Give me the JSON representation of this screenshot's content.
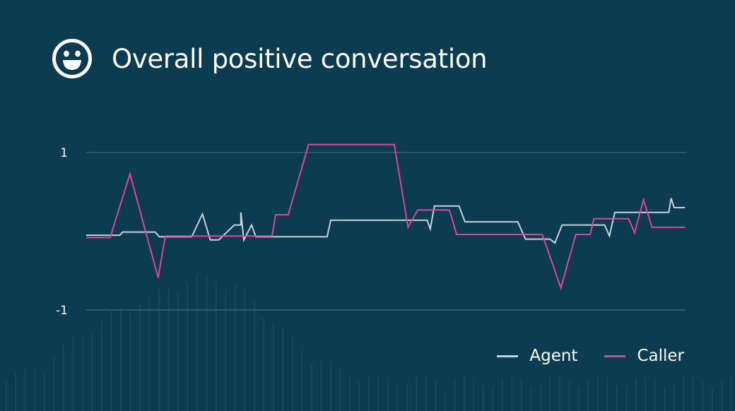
{
  "title": "Overall positive conversation",
  "header_icon": "smiley-face-icon",
  "colors": {
    "background": "#0b3c50",
    "agent": "#c5d3d8",
    "caller": "#e0449a",
    "gridline": "#4d7280"
  },
  "chart_data": {
    "type": "line",
    "title": "Overall positive conversation",
    "xlabel": "",
    "ylabel": "",
    "ylim": [
      -1,
      1
    ],
    "yticks": [
      {
        "value": 1,
        "label": "1"
      },
      {
        "value": -1,
        "label": "-1"
      }
    ],
    "xlim": [
      0,
      100
    ],
    "grid": true,
    "legend_position": "bottom-right",
    "series": [
      {
        "name": "Agent",
        "color": "#c5d3d8",
        "x": [
          0,
          5.6,
          6.1,
          11.5,
          12.2,
          17.6,
          19.4,
          20.7,
          22.1,
          24.7,
          25.8,
          25.8,
          26.3,
          27.6,
          28.3,
          28.8,
          40.2,
          40.8,
          56.4,
          56.9,
          57.4,
          58.1,
          62.2,
          63.2,
          72.0,
          73.3,
          77.4,
          78.2,
          79.4,
          86.5,
          87.3,
          88.2,
          97.2,
          97.6,
          98.1,
          99.9
        ],
        "y": [
          -0.05,
          -0.05,
          -0.01,
          -0.01,
          -0.07,
          -0.07,
          0.22,
          -0.11,
          -0.11,
          0.08,
          0.08,
          0.24,
          -0.11,
          0.08,
          -0.07,
          -0.07,
          -0.07,
          0.14,
          0.14,
          0.14,
          0.03,
          0.32,
          0.32,
          0.12,
          0.12,
          -0.1,
          -0.1,
          -0.15,
          0.08,
          0.08,
          -0.06,
          0.24,
          0.24,
          0.42,
          0.3,
          0.3
        ]
      },
      {
        "name": "Caller",
        "color": "#e0449a",
        "x": [
          0,
          4.0,
          7.3,
          12.0,
          13.2,
          23.5,
          24.0,
          31.0,
          31.6,
          32.6,
          33.7,
          37.1,
          51.4,
          53.7,
          55.3,
          60.6,
          61.8,
          76.1,
          79.2,
          81.7,
          84.1,
          84.7,
          90.5,
          91.5,
          93.0,
          94.4,
          99.9
        ],
        "y": [
          -0.08,
          -0.08,
          0.73,
          -0.59,
          -0.06,
          -0.06,
          -0.06,
          -0.06,
          0.21,
          0.21,
          0.21,
          1.1,
          1.1,
          0.05,
          0.27,
          0.27,
          -0.04,
          -0.04,
          -0.72,
          -0.04,
          -0.04,
          0.16,
          0.16,
          -0.02,
          0.4,
          0.05,
          0.05
        ]
      }
    ]
  }
}
